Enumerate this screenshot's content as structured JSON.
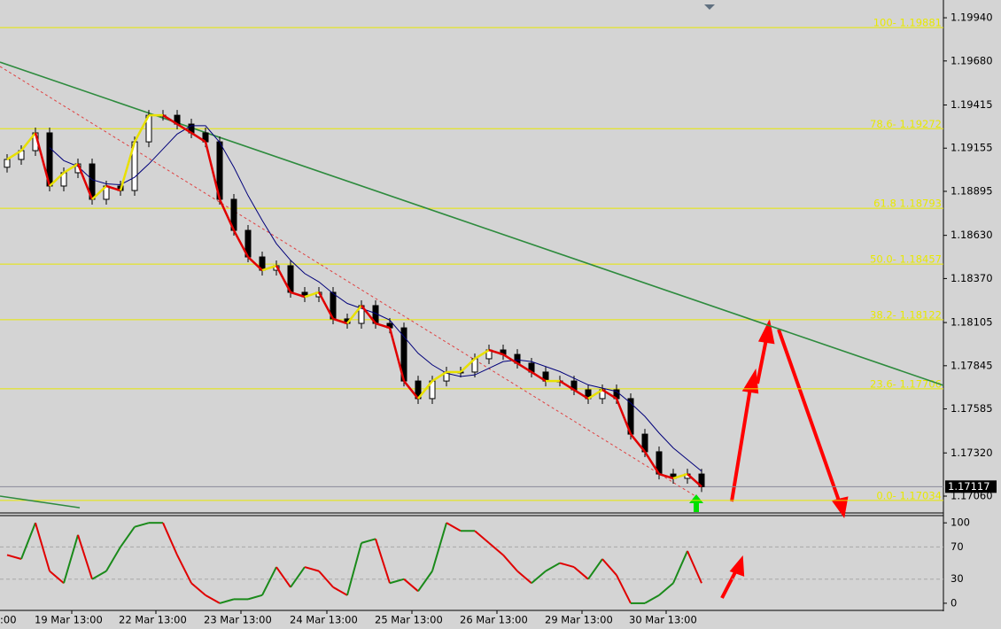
{
  "chart_data": {
    "type": "candlestick",
    "ylim": [
      1.16964,
      1.20047
    ],
    "yticks": [
      {
        "value": 1.1994,
        "label": "1.19940"
      },
      {
        "value": 1.1968,
        "label": "1.19680"
      },
      1.19415,
      1.19155,
      1.18895,
      {
        "value": 1.1863,
        "label": "1.18630"
      },
      {
        "value": 1.1837,
        "label": "1.18370"
      },
      1.18105,
      1.17845,
      1.17585,
      {
        "value": 1.1732,
        "label": "1.17320"
      },
      {
        "value": 1.1706,
        "label": "1.17060"
      }
    ],
    "categories": [
      ":00",
      "19 Mar 13:00",
      "22 Mar 13:00",
      "23 Mar 13:00",
      "24 Mar 13:00",
      "25 Mar 13:00",
      "26 Mar 13:00",
      "29 Mar 13:00",
      "30 Mar 13:00"
    ],
    "open": [
      1.1904,
      1.19087,
      1.1914,
      1.19247,
      1.18927,
      1.19007,
      1.1906,
      1.18847,
      1.18927,
      1.189,
      1.19193,
      1.19353,
      1.19353,
      1.193,
      1.19247,
      1.19193,
      1.18847,
      1.1866,
      1.185,
      1.1842,
      1.18447,
      1.18287,
      1.1826,
      1.18287,
      1.18127,
      1.181,
      1.18207,
      1.181,
      1.18073,
      1.17753,
      1.17647,
      1.17753,
      1.17807,
      1.17807,
      1.17887,
      1.1794,
      1.17913,
      1.1786,
      1.17807,
      1.17753,
      1.17753,
      1.177,
      1.17647,
      1.177,
      1.17647,
      1.17433,
      1.17327,
      1.17193,
      1.17167,
      1.17193
    ],
    "close": [
      1.19087,
      1.1914,
      1.19247,
      1.18927,
      1.19007,
      1.1906,
      1.18847,
      1.18927,
      1.189,
      1.19193,
      1.19353,
      1.19353,
      1.193,
      1.19247,
      1.19193,
      1.18847,
      1.1866,
      1.185,
      1.1842,
      1.18447,
      1.18287,
      1.1826,
      1.18287,
      1.18127,
      1.181,
      1.18207,
      1.181,
      1.18073,
      1.17753,
      1.17647,
      1.17753,
      1.17807,
      1.17807,
      1.17887,
      1.1794,
      1.17913,
      1.1786,
      1.17807,
      1.17753,
      1.17753,
      1.177,
      1.17647,
      1.177,
      1.17647,
      1.17433,
      1.17327,
      1.17193,
      1.17167,
      1.17193,
      1.17117
    ],
    "moving_average": {
      "color": "#00007a",
      "values": [
        null,
        null,
        null,
        1.19158,
        1.1908,
        1.19045,
        1.18965,
        1.1894,
        1.18935,
        1.1898,
        1.1906,
        1.1915,
        1.1924,
        1.1929,
        1.1929,
        1.1919,
        1.1904,
        1.1887,
        1.1872,
        1.1858,
        1.1848,
        1.184,
        1.1835,
        1.1828,
        1.1822,
        1.1819,
        1.1816,
        1.1812,
        1.1802,
        1.1792,
        1.1785,
        1.178,
        1.1778,
        1.1779,
        1.1783,
        1.1787,
        1.1788,
        1.1787,
        1.1784,
        1.1781,
        1.1777,
        1.1773,
        1.1771,
        1.1769,
        1.1762,
        1.1754,
        1.1744,
        1.1735,
        1.1728,
        1.1721
      ]
    },
    "overlay_colors": {
      "up": "#e8e000",
      "down": "#e00000"
    },
    "current_price": {
      "value": 1.17117,
      "label": "1.17117"
    },
    "fib_levels": [
      1.19881,
      1.19272,
      1.18793,
      1.18457,
      1.18122,
      1.17706,
      1.17034
    ],
    "fib_labels": [
      "100- 1.19881",
      "78.6- 1.19272",
      "61.8 1.18793",
      "50.0- 1.18457",
      "38.2- 1.18122",
      "23.6- 1.17706",
      "0.0- 1.17034"
    ],
    "fib_color": "#e8e800",
    "trend_line": {
      "color": "#2e8b3e",
      "start": 1.19673,
      "end": 1.17727
    },
    "trend_line_2": {
      "color": "#2e8b3e",
      "start": 1.1706,
      "end": 1.1699
    },
    "channel_line": {
      "color": "#e04040",
      "start": 1.19647,
      "end": 1.1706
    },
    "oscillator": {
      "ylim": [
        -10,
        109
      ],
      "yticks": [
        100,
        70,
        30,
        0
      ],
      "up_color": "#1a8a1a",
      "down_color": "#e00000",
      "values": [
        60,
        55,
        100,
        40,
        25,
        85,
        30,
        40,
        70,
        95,
        100,
        100,
        60,
        25,
        10,
        0,
        5,
        5,
        10,
        45,
        20,
        45,
        40,
        20,
        10,
        75,
        80,
        25,
        30,
        15,
        40,
        100,
        90,
        90,
        75,
        60,
        40,
        25,
        40,
        50,
        45,
        30,
        55,
        35,
        0,
        0,
        10,
        25,
        65,
        25
      ]
    }
  }
}
